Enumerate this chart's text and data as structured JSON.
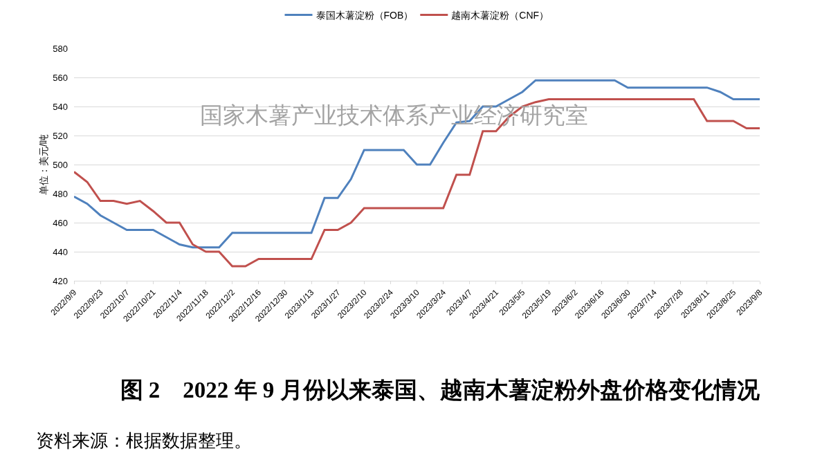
{
  "chart_data": {
    "type": "line",
    "title": "图 2　2022 年 9 月份以来泰国、越南木薯淀粉外盘价格变化情况",
    "ylabel": "单位：美元/吨",
    "categories": [
      "2022/9/9",
      null,
      "2022/9/23",
      null,
      "2022/10/7",
      null,
      "2022/10/21",
      null,
      "2022/11/4",
      null,
      "2022/11/18",
      null,
      "2022/12/2",
      null,
      "2022/12/16",
      null,
      "2022/12/30",
      null,
      "2023/1/13",
      null,
      "2023/1/27",
      null,
      "2023/2/10",
      null,
      "2023/2/24",
      null,
      "2023/3/10",
      null,
      "2023/3/24",
      null,
      "2023/4/7",
      null,
      "2023/4/21",
      null,
      "2023/5/5",
      null,
      "2023/5/19",
      null,
      "2023/6/2",
      null,
      "2023/6/16",
      null,
      "2023/6/30",
      null,
      "2023/7/14",
      null,
      "2023/7/28",
      null,
      "2023/8/11",
      null,
      "2023/8/25",
      null,
      "2023/9/8"
    ],
    "series": [
      {
        "name": "泰国木薯淀粉（FOB）",
        "color": "#4f81bd",
        "values": [
          478,
          473,
          465,
          460,
          455,
          455,
          455,
          450,
          445,
          443,
          443,
          443,
          453,
          453,
          453,
          453,
          453,
          453,
          453,
          477,
          477,
          490,
          510,
          510,
          510,
          510,
          500,
          500,
          515,
          529,
          530,
          540,
          540,
          545,
          550,
          558,
          558,
          558,
          558,
          558,
          558,
          558,
          553,
          553,
          553,
          553,
          553,
          553,
          553,
          550,
          545,
          545,
          545
        ]
      },
      {
        "name": "越南木薯淀粉（CNF）",
        "color": "#c0504d",
        "values": [
          495,
          488,
          475,
          475,
          473,
          475,
          468,
          460,
          460,
          445,
          440,
          440,
          430,
          430,
          435,
          435,
          435,
          435,
          435,
          455,
          455,
          460,
          470,
          470,
          470,
          470,
          470,
          470,
          470,
          493,
          493,
          523,
          523,
          533,
          540,
          543,
          545,
          545,
          545,
          545,
          545,
          545,
          545,
          545,
          545,
          545,
          545,
          545,
          530,
          530,
          530,
          525,
          525
        ]
      }
    ],
    "ylim": [
      420,
      580
    ],
    "yticks": [
      420,
      440,
      460,
      480,
      500,
      520,
      540,
      560,
      580
    ],
    "grid": "y",
    "legend": "top",
    "annotations": [
      "国家木薯产业技术体系产业经济研究室",
      "资料来源：根据数据整理。"
    ]
  }
}
